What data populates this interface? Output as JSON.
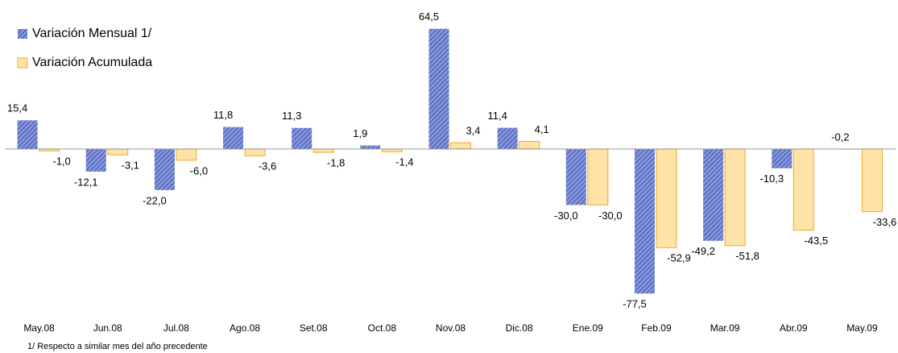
{
  "chart_data": {
    "type": "bar",
    "categories": [
      "May.08",
      "Jun.08",
      "Jul.08",
      "Ago.08",
      "Set.08",
      "Oct.08",
      "Nov.08",
      "Dic.08",
      "Ene.09",
      "Feb.09",
      "Mar.09",
      "Abr.09",
      "May.09"
    ],
    "series": [
      {
        "name": "Variación Mensual 1/",
        "color": "#6d7fd0",
        "values": [
          15.4,
          -12.1,
          -22.0,
          11.8,
          11.3,
          1.9,
          64.5,
          11.4,
          -30.0,
          -77.5,
          -49.2,
          -10.3,
          -0.2
        ],
        "value_labels": [
          "15,4",
          "-12,1",
          "-22,0",
          "11,8",
          "11,3",
          "1,9",
          "64,5",
          "11,4",
          "-30,0",
          "-77,5",
          "-49,2",
          "-10,3",
          "-0,2"
        ]
      },
      {
        "name": "Variación Acumulada",
        "color": "#ffe3a6",
        "values": [
          -1.0,
          -3.1,
          -6.0,
          -3.6,
          -1.8,
          -1.4,
          3.4,
          4.1,
          -30.0,
          -52.9,
          -51.8,
          -43.5,
          -33.6
        ],
        "value_labels": [
          "-1,0",
          "-3,1",
          "-6,0",
          "-3,6",
          "-1,8",
          "-1,4",
          "3,4",
          "4,1",
          "-30,0",
          "-52,9",
          "-51,8",
          "-43,5",
          "-33,6"
        ]
      }
    ],
    "ylim": [
      -80,
      70
    ],
    "note": "1/ Respecto a similar mes del año precedente"
  }
}
